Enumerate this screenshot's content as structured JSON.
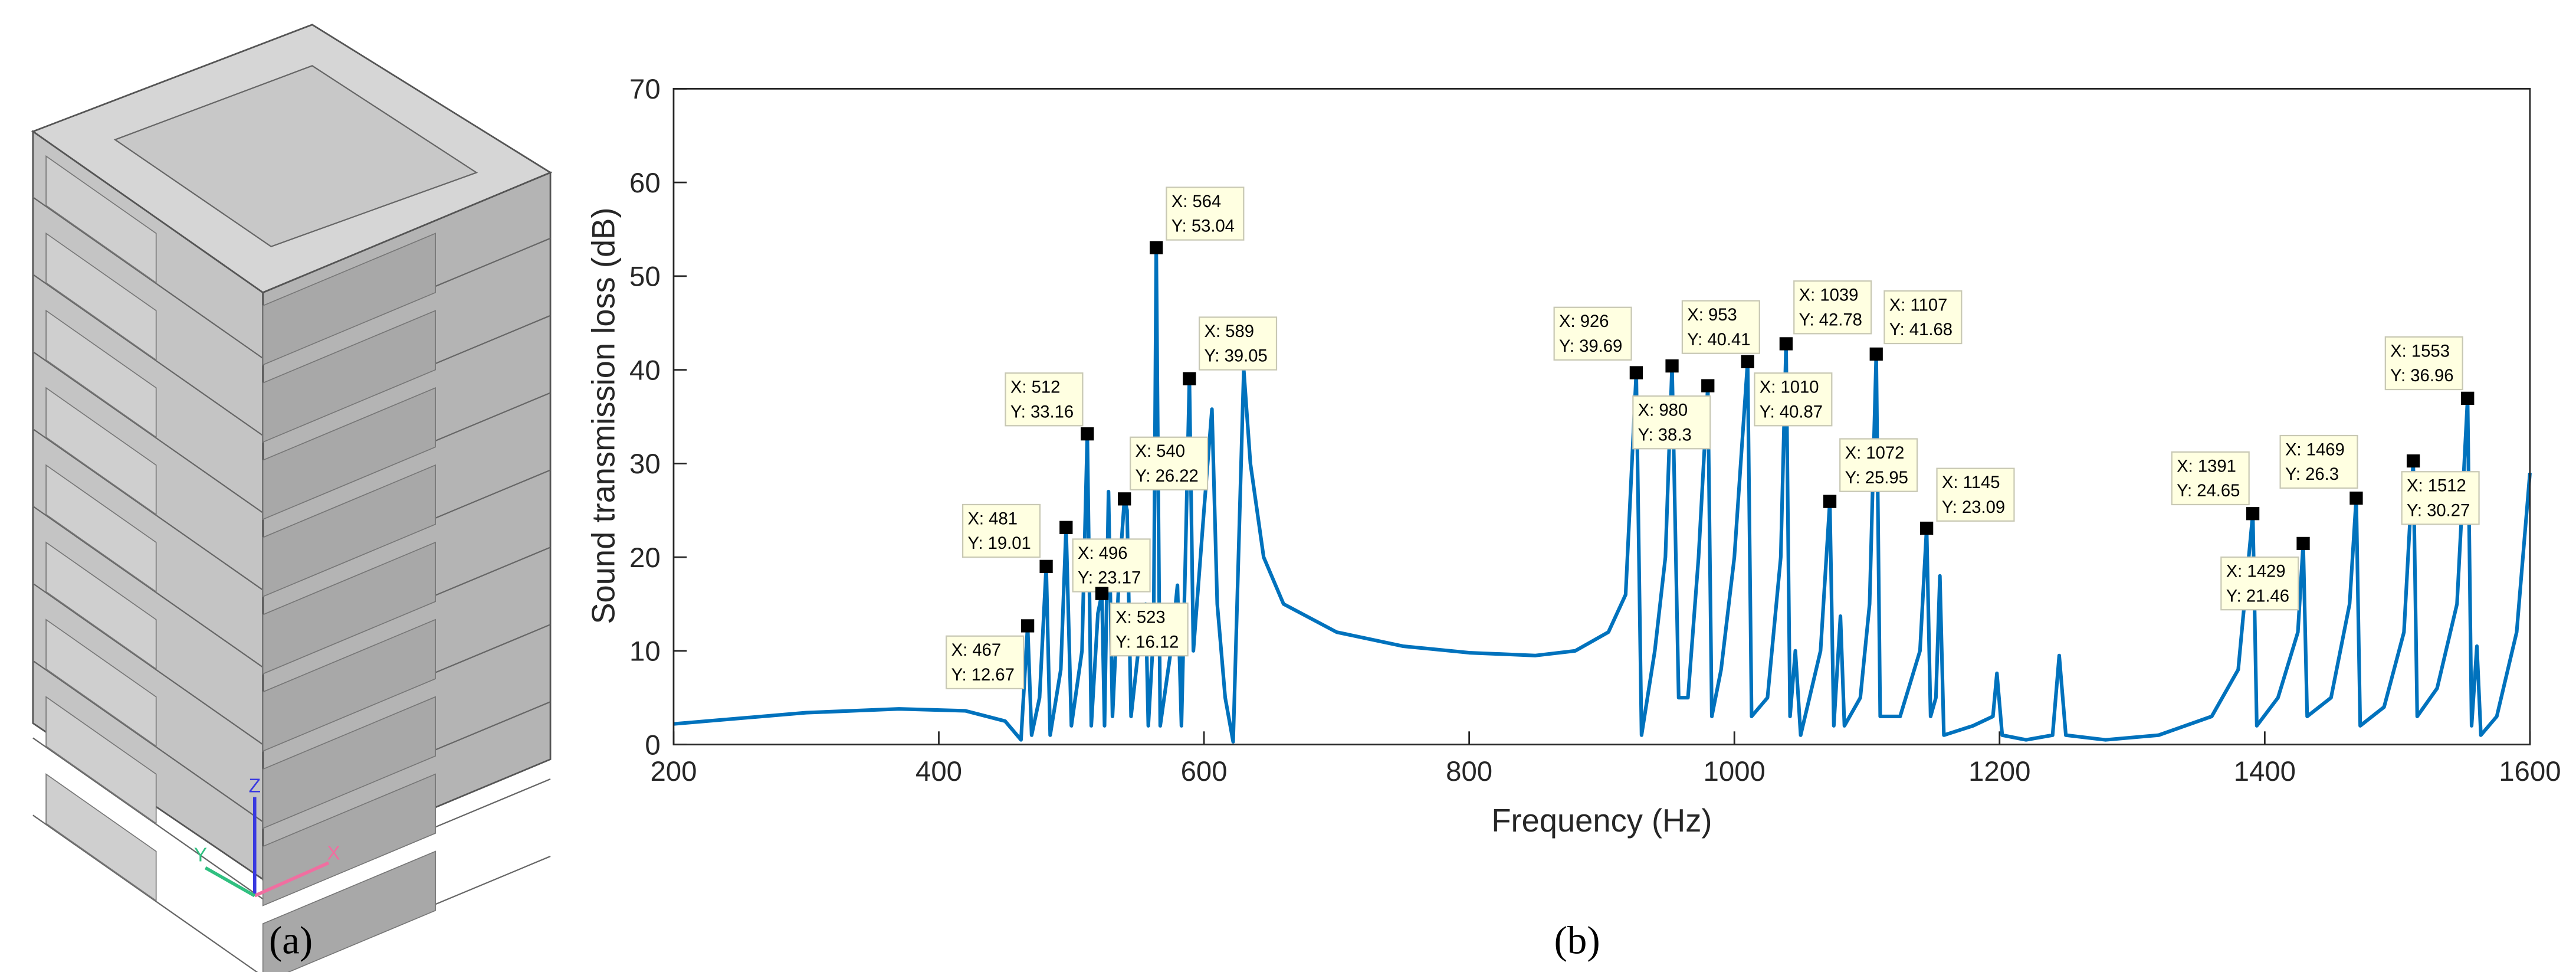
{
  "chart_data": {
    "type": "line",
    "xlabel": "Frequency (Hz)",
    "ylabel": "Sound transmission loss (dB)",
    "panel_labels": [
      "(a)",
      "(b)"
    ],
    "axes_triad": [
      "X",
      "Y",
      "Z"
    ],
    "xlim": [
      200,
      1600
    ],
    "xticks": [
      200,
      400,
      600,
      800,
      1000,
      1200,
      1400,
      1600
    ],
    "ylim": [
      0,
      70
    ],
    "yticks": [
      0,
      10,
      20,
      30,
      40,
      50,
      60,
      70
    ],
    "x": [
      200,
      300,
      370,
      420,
      450,
      462,
      467,
      470,
      476,
      481,
      484,
      492,
      496,
      500,
      508,
      512,
      515,
      520,
      523,
      525,
      528,
      531,
      536,
      540,
      542,
      545,
      552,
      556,
      558,
      562,
      564,
      567,
      575,
      580,
      583,
      586,
      589,
      592,
      600,
      606,
      610,
      616,
      622,
      626,
      630,
      635,
      645,
      660,
      700,
      750,
      800,
      850,
      880,
      905,
      918,
      926,
      930,
      940,
      948,
      953,
      958,
      965,
      973,
      980,
      983,
      990,
      1000,
      1010,
      1013,
      1025,
      1035,
      1039,
      1042,
      1046,
      1050,
      1065,
      1072,
      1075,
      1080,
      1083,
      1095,
      1102,
      1107,
      1110,
      1125,
      1140,
      1145,
      1148,
      1152,
      1155,
      1158,
      1180,
      1195,
      1198,
      1202,
      1220,
      1240,
      1245,
      1250,
      1280,
      1320,
      1360,
      1380,
      1391,
      1394,
      1410,
      1425,
      1429,
      1432,
      1450,
      1464,
      1469,
      1472,
      1490,
      1505,
      1512,
      1515,
      1530,
      1545,
      1553,
      1556,
      1560,
      1563,
      1575,
      1590,
      1600
    ],
    "series": [
      {
        "color": "#0072bd",
        "values": [
          2.2,
          3.4,
          3.8,
          3.6,
          2.5,
          0.5,
          12.67,
          1,
          5,
          19.01,
          1,
          8,
          23.17,
          2,
          10,
          33.16,
          2,
          14,
          16.12,
          2,
          27,
          3,
          18,
          26.22,
          25,
          3,
          12,
          15,
          2,
          12,
          53.04,
          2,
          10,
          17,
          2,
          20,
          39.05,
          10,
          25,
          35.8,
          15,
          5,
          0.3,
          20,
          40,
          30,
          20,
          15,
          12,
          10.5,
          9.8,
          9.5,
          10,
          12,
          16,
          39.69,
          1,
          10,
          20,
          40.41,
          5,
          5,
          20,
          38.3,
          3,
          8,
          20,
          40.87,
          3,
          5,
          20,
          42.78,
          3,
          10,
          1,
          10,
          25.95,
          2,
          13.7,
          2,
          5,
          15,
          41.68,
          3,
          3,
          10,
          23.09,
          3,
          5,
          18,
          1,
          2,
          3,
          7.6,
          1,
          0.5,
          1,
          9.5,
          1,
          0.5,
          1,
          3,
          8,
          24.65,
          2,
          5,
          12,
          21.46,
          3,
          5,
          15,
          26.3,
          2,
          4,
          12,
          30.27,
          3,
          6,
          15,
          36.96,
          2,
          10.5,
          1,
          3,
          12,
          29
        ]
      }
    ],
    "datatips": [
      {
        "x": 467,
        "y": 12.67,
        "label_x": "X: 467",
        "label_y": "Y: 12.67"
      },
      {
        "x": 481,
        "y": 19.01,
        "label_x": "X: 481",
        "label_y": "Y: 19.01"
      },
      {
        "x": 496,
        "y": 23.17,
        "label_x": "X: 496",
        "label_y": "Y: 23.17"
      },
      {
        "x": 512,
        "y": 33.16,
        "label_x": "X: 512",
        "label_y": "Y: 33.16"
      },
      {
        "x": 523,
        "y": 16.12,
        "label_x": "X: 523",
        "label_y": "Y: 16.12"
      },
      {
        "x": 540,
        "y": 26.22,
        "label_x": "X: 540",
        "label_y": "Y: 26.22"
      },
      {
        "x": 564,
        "y": 53.04,
        "label_x": "X: 564",
        "label_y": "Y: 53.04"
      },
      {
        "x": 589,
        "y": 39.05,
        "label_x": "X: 589",
        "label_y": "Y: 39.05"
      },
      {
        "x": 926,
        "y": 39.69,
        "label_x": "X: 926",
        "label_y": "Y: 39.69"
      },
      {
        "x": 980,
        "y": 38.3,
        "label_x": "X: 980",
        "label_y": "Y: 38.3"
      },
      {
        "x": 953,
        "y": 40.41,
        "label_x": "X: 953",
        "label_y": "Y: 40.41"
      },
      {
        "x": 1010,
        "y": 40.87,
        "label_x": "X: 1010",
        "label_y": "Y: 40.87"
      },
      {
        "x": 1039,
        "y": 42.78,
        "label_x": "X: 1039",
        "label_y": "Y: 42.78"
      },
      {
        "x": 1072,
        "y": 25.95,
        "label_x": "X: 1072",
        "label_y": "Y: 25.95"
      },
      {
        "x": 1107,
        "y": 41.68,
        "label_x": "X: 1107",
        "label_y": "Y: 41.68"
      },
      {
        "x": 1145,
        "y": 23.09,
        "label_x": "X: 1145",
        "label_y": "Y: 23.09"
      },
      {
        "x": 1391,
        "y": 24.65,
        "label_x": "X: 1391",
        "label_y": "Y: 24.65"
      },
      {
        "x": 1429,
        "y": 21.46,
        "label_x": "X: 1429",
        "label_y": "Y: 21.46"
      },
      {
        "x": 1469,
        "y": 26.3,
        "label_x": "X: 1469",
        "label_y": "Y: 26.3"
      },
      {
        "x": 1553,
        "y": 36.96,
        "label_x": "X: 1553",
        "label_y": "Y: 36.96"
      },
      {
        "x": 1512,
        "y": 30.27,
        "label_x": "X: 1512",
        "label_y": "Y: 30.27"
      }
    ]
  }
}
